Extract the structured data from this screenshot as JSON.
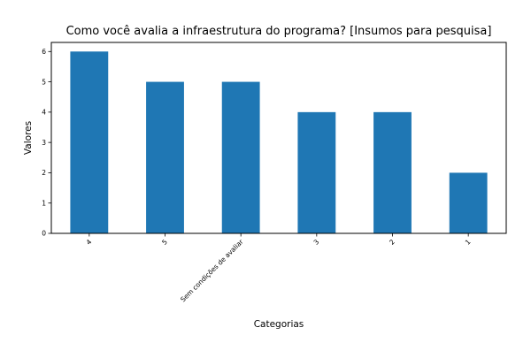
{
  "chart_data": {
    "type": "bar",
    "title": "Como você avalia a  infraestrutura do programa?  [Insumos para pesquisa]",
    "xlabel": "Categorias",
    "ylabel": "Valores",
    "categories": [
      "4",
      "5",
      "Sem condições de avaliar",
      "3",
      "2",
      "1"
    ],
    "values": [
      6,
      5,
      5,
      4,
      4,
      2
    ],
    "ylim": [
      0,
      6.3
    ],
    "yticks": [
      0,
      1,
      2,
      3,
      4,
      5,
      6
    ],
    "grid": false,
    "legend": "none",
    "bar_color": "#1f77b4"
  }
}
